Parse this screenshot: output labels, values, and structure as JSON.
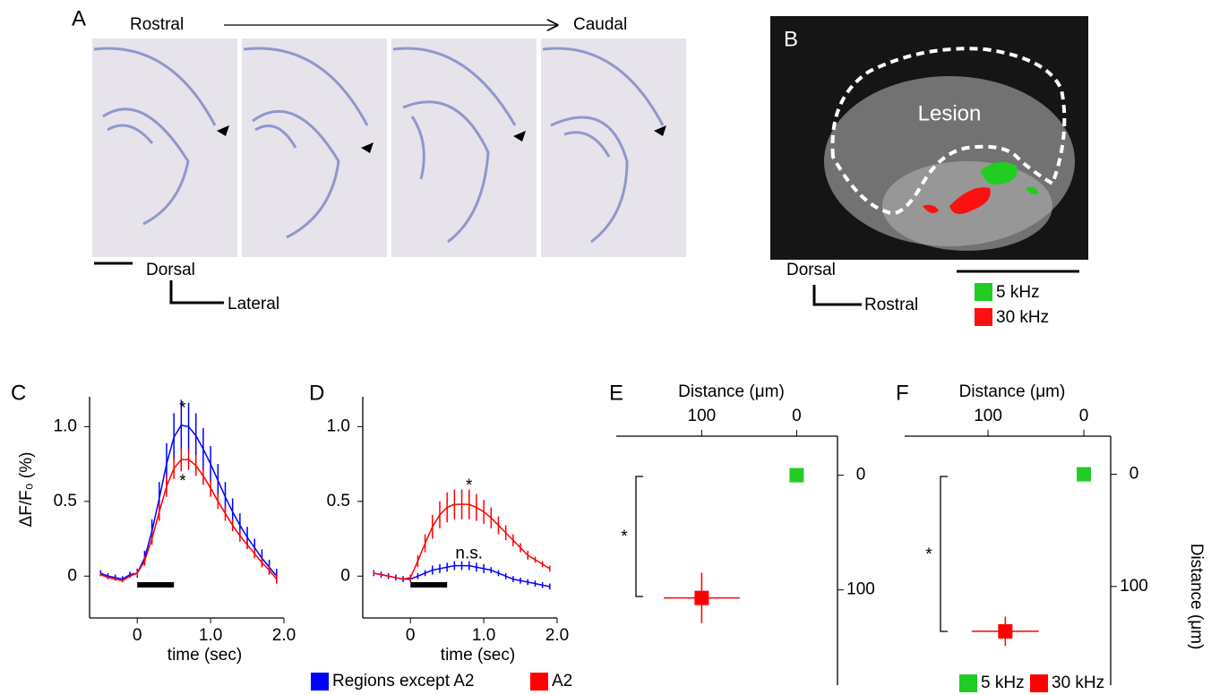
{
  "panel_a": {
    "label": "A",
    "start": "Rostral",
    "end": "Caudal",
    "orientation": {
      "vertical": "Dorsal",
      "horizontal": "Lateral"
    }
  },
  "panel_b": {
    "label": "B",
    "region": "Lesion",
    "orientation": {
      "vertical": "Dorsal",
      "horizontal": "Rostral"
    },
    "legend": [
      "5 kHz",
      "30 kHz"
    ]
  },
  "chart_data": [
    {
      "type": "line",
      "label": "C",
      "y_label": "ΔF/F₀ (%)",
      "x_label": "time (sec)",
      "xlim": [
        -0.65,
        2.0
      ],
      "ylim": [
        -0.28,
        1.2
      ],
      "xticks": [
        0,
        {
          "value": 1,
          "label": "1.0"
        },
        {
          "value": 2,
          "label": "2.0"
        }
      ],
      "yticks": [
        0,
        0.5,
        {
          "value": 1,
          "label": "1.0"
        }
      ],
      "stimulus": [
        0,
        0.5
      ],
      "annotations": [
        "*",
        "*"
      ],
      "x": [
        -0.5,
        -0.4,
        -0.3,
        -0.2,
        -0.1,
        0,
        0.1,
        0.2,
        0.3,
        0.4,
        0.5,
        0.6,
        0.7,
        0.8,
        0.9,
        1.0,
        1.1,
        1.2,
        1.3,
        1.4,
        1.5,
        1.6,
        1.7,
        1.8,
        1.9
      ],
      "series": [
        {
          "name": "Regions except A2",
          "color": "#0000ff",
          "values": [
            0.02,
            0.0,
            -0.01,
            -0.02,
            0.01,
            0.02,
            0.12,
            0.3,
            0.52,
            0.75,
            0.93,
            1.01,
            1.0,
            0.94,
            0.85,
            0.75,
            0.64,
            0.53,
            0.43,
            0.34,
            0.26,
            0.19,
            0.12,
            0.06,
            0.0
          ],
          "errors": [
            0.02,
            0.02,
            0.02,
            0.02,
            0.02,
            0.03,
            0.05,
            0.08,
            0.11,
            0.14,
            0.16,
            0.17,
            0.16,
            0.15,
            0.14,
            0.12,
            0.11,
            0.1,
            0.09,
            0.08,
            0.07,
            0.06,
            0.06,
            0.05,
            0.05
          ]
        },
        {
          "name": "A2",
          "color": "#ff0000",
          "values": [
            0.01,
            -0.01,
            -0.02,
            -0.03,
            0.0,
            0.02,
            0.1,
            0.25,
            0.43,
            0.6,
            0.72,
            0.78,
            0.78,
            0.74,
            0.67,
            0.59,
            0.5,
            0.42,
            0.34,
            0.27,
            0.21,
            0.15,
            0.09,
            0.04,
            -0.02
          ],
          "errors": [
            0.01,
            0.01,
            0.01,
            0.01,
            0.01,
            0.02,
            0.03,
            0.04,
            0.06,
            0.07,
            0.07,
            0.08,
            0.07,
            0.07,
            0.06,
            0.06,
            0.05,
            0.05,
            0.04,
            0.04,
            0.03,
            0.03,
            0.03,
            0.03,
            0.03
          ]
        }
      ]
    },
    {
      "type": "line",
      "label": "D",
      "x_label": "time (sec)",
      "xlim": [
        -0.65,
        2.0
      ],
      "ylim": [
        -0.28,
        1.2
      ],
      "xticks": [
        0,
        {
          "value": 1,
          "label": "1.0"
        },
        {
          "value": 2,
          "label": "2.0"
        }
      ],
      "yticks": [
        0,
        0.5,
        {
          "value": 1,
          "label": "1.0"
        }
      ],
      "stimulus": [
        0,
        0.5
      ],
      "annotations": [
        "*",
        "n.s."
      ],
      "x": [
        -0.5,
        -0.4,
        -0.3,
        -0.2,
        -0.1,
        0,
        0.1,
        0.2,
        0.3,
        0.4,
        0.5,
        0.6,
        0.7,
        0.8,
        0.9,
        1.0,
        1.1,
        1.2,
        1.3,
        1.4,
        1.5,
        1.6,
        1.7,
        1.8,
        1.9
      ],
      "series": [
        {
          "color": "#0000ff",
          "values": [
            0.02,
            0.01,
            0.0,
            -0.01,
            -0.02,
            -0.02,
            0.0,
            0.02,
            0.04,
            0.05,
            0.06,
            0.07,
            0.07,
            0.07,
            0.06,
            0.05,
            0.04,
            0.02,
            0.0,
            -0.02,
            -0.03,
            -0.04,
            -0.05,
            -0.06,
            -0.07
          ],
          "errors": [
            0.02,
            0.02,
            0.02,
            0.02,
            0.02,
            0.02,
            0.02,
            0.02,
            0.03,
            0.03,
            0.03,
            0.03,
            0.03,
            0.03,
            0.03,
            0.03,
            0.02,
            0.02,
            0.02,
            0.02,
            0.02,
            0.02,
            0.02,
            0.02,
            0.02
          ]
        },
        {
          "color": "#ff0000",
          "values": [
            0.02,
            0.01,
            0.0,
            -0.01,
            -0.02,
            -0.01,
            0.1,
            0.22,
            0.33,
            0.41,
            0.46,
            0.48,
            0.48,
            0.48,
            0.46,
            0.43,
            0.39,
            0.34,
            0.29,
            0.24,
            0.19,
            0.14,
            0.11,
            0.08,
            0.05
          ],
          "errors": [
            0.01,
            0.01,
            0.01,
            0.01,
            0.01,
            0.02,
            0.04,
            0.06,
            0.08,
            0.09,
            0.1,
            0.1,
            0.1,
            0.1,
            0.09,
            0.08,
            0.07,
            0.06,
            0.05,
            0.04,
            0.03,
            0.03,
            0.02,
            0.02,
            0.02
          ]
        }
      ]
    },
    {
      "type": "scatter",
      "label": "E",
      "x_label": "Distance (μm)",
      "xlim": [
        190,
        -43
      ],
      "ylim": [
        -34,
        183
      ],
      "xticks": [
        100,
        0
      ],
      "yticks": [
        0,
        100
      ],
      "annotations": [
        "*"
      ],
      "series": [
        {
          "color": "#22cc22",
          "x": [
            0
          ],
          "values": [
            0
          ]
        },
        {
          "color": "#ff0000",
          "x": [
            100
          ],
          "values": [
            107
          ],
          "x_err": [
            40
          ],
          "y_err": [
            22
          ]
        }
      ]
    },
    {
      "type": "scatter",
      "label": "F",
      "x_label": "Distance (μm)",
      "y_label": "Distance (μm)",
      "xlim": [
        187,
        -28
      ],
      "ylim": [
        -34,
        188
      ],
      "xticks": [
        100,
        0
      ],
      "yticks": [
        0,
        100
      ],
      "annotations": [
        "*"
      ],
      "series": [
        {
          "name": "5 kHz",
          "color": "#22cc22",
          "x": [
            0
          ],
          "values": [
            0
          ]
        },
        {
          "name": "30 kHz",
          "color": "#ff0000",
          "x": [
            82
          ],
          "values": [
            140
          ],
          "x_err": [
            35
          ],
          "y_err": [
            13
          ]
        }
      ]
    }
  ]
}
